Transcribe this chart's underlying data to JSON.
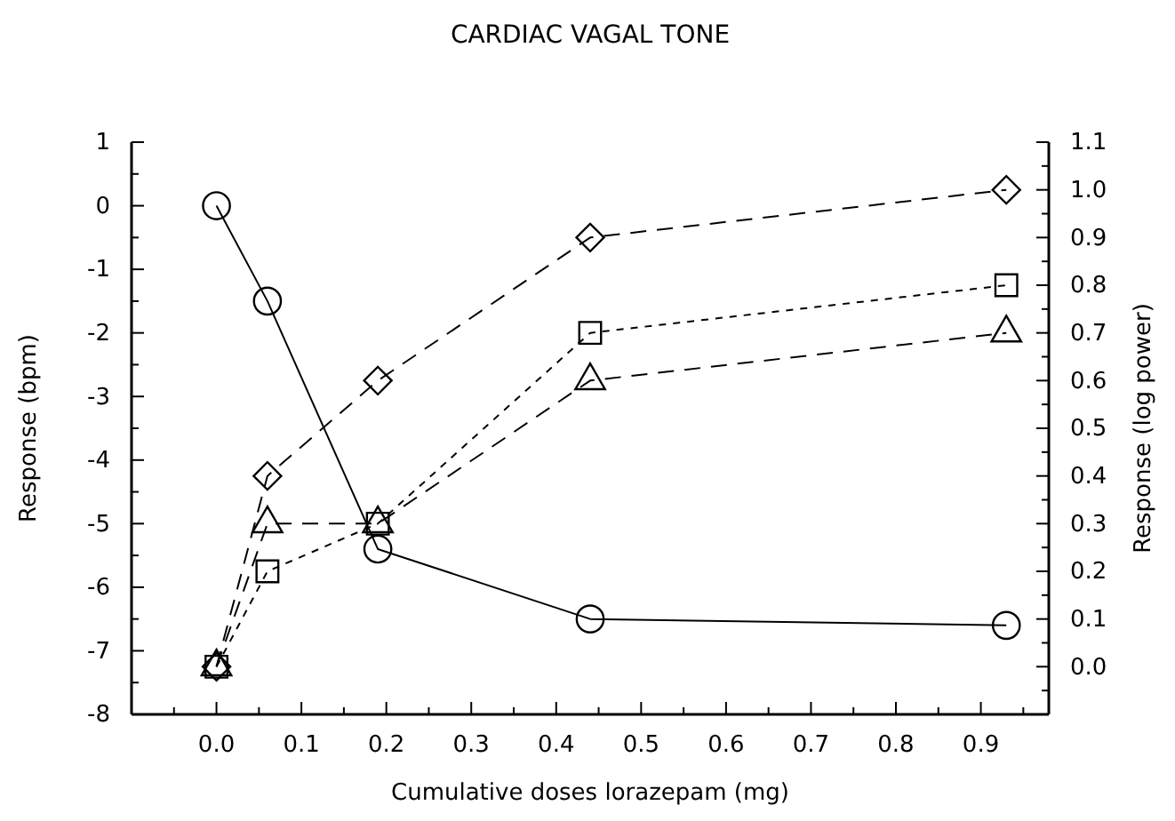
{
  "chart_data": {
    "type": "line",
    "title": "CARDIAC VAGAL TONE",
    "xlabel": "Cumulative doses lorazepam (mg)",
    "ylabel": "Response (bpm)",
    "y2label": "Response (log power)",
    "x": [
      0,
      0.06,
      0.19,
      0.44,
      0.93
    ],
    "series": [
      {
        "color": "#000000",
        "marker": "circle",
        "line_style": "solid",
        "values": [
          0,
          -1.5,
          -5.4,
          -6.5,
          -6.6
        ]
      },
      {
        "color": "#000000",
        "marker": "diamond",
        "line_style": "dashed",
        "axis": "y2",
        "values": [
          0,
          0.4,
          0.6,
          0.9,
          1.0
        ]
      },
      {
        "color": "#000000",
        "marker": "square",
        "line_style": "dotted",
        "axis": "y2",
        "values": [
          0,
          0.2,
          0.3,
          0.7,
          0.8
        ]
      },
      {
        "color": "#000000",
        "marker": "triangle",
        "line_style": "dashed",
        "axis": "y2",
        "values": [
          0,
          0.3,
          0.3,
          0.6,
          0.7
        ]
      }
    ],
    "xlim": [
      -0.1,
      0.98
    ],
    "xticks": [
      {
        "value": 0,
        "label": "0.0"
      },
      0.1,
      0.2,
      0.3,
      0.4,
      0.5,
      0.6,
      0.7,
      0.8,
      0.9,
      {
        "value": -0.05,
        "label": null
      },
      {
        "value": 0.05,
        "label": null
      },
      {
        "value": 0.15,
        "label": null
      },
      {
        "value": 0.25,
        "label": null
      },
      {
        "value": 0.35,
        "label": null
      },
      {
        "value": 0.45,
        "label": null
      },
      {
        "value": 0.55,
        "label": null
      },
      {
        "value": 0.65,
        "label": null
      },
      {
        "value": 0.75,
        "label": null
      },
      {
        "value": 0.85,
        "label": null
      },
      {
        "value": 0.95,
        "label": null
      }
    ],
    "ylim": [
      -8,
      1
    ],
    "yticks": [
      -8,
      -7,
      -6,
      -5,
      -4,
      -3,
      -2,
      -1,
      0,
      1,
      {
        "value": -7.5,
        "label": null
      },
      {
        "value": -6.5,
        "label": null
      },
      {
        "value": -5.5,
        "label": null
      },
      {
        "value": -4.5,
        "label": null
      },
      {
        "value": -3.5,
        "label": null
      },
      {
        "value": -2.5,
        "label": null
      },
      {
        "value": -1.5,
        "label": null
      },
      {
        "value": -0.5,
        "label": null
      },
      {
        "value": 0.5,
        "label": null
      }
    ],
    "y2lim": [
      -0.1,
      1.1
    ],
    "y2ticks": [
      {
        "value": 0,
        "label": "0.0"
      },
      0.1,
      0.2,
      0.3,
      0.4,
      0.5,
      0.6,
      0.7,
      0.8,
      0.9,
      {
        "value": 1,
        "label": "1.0"
      },
      1.1,
      {
        "value": -0.05,
        "label": null
      },
      {
        "value": 0.05,
        "label": null
      },
      {
        "value": 0.15,
        "label": null
      },
      {
        "value": 0.25,
        "label": null
      },
      {
        "value": 0.35,
        "label": null
      },
      {
        "value": 0.45,
        "label": null
      },
      {
        "value": 0.55,
        "label": null
      },
      {
        "value": 0.65,
        "label": null
      },
      {
        "value": 0.75,
        "label": null
      },
      {
        "value": 0.85,
        "label": null
      },
      {
        "value": 0.95,
        "label": null
      },
      {
        "value": 1.05,
        "label": null
      }
    ],
    "grid": false
  }
}
